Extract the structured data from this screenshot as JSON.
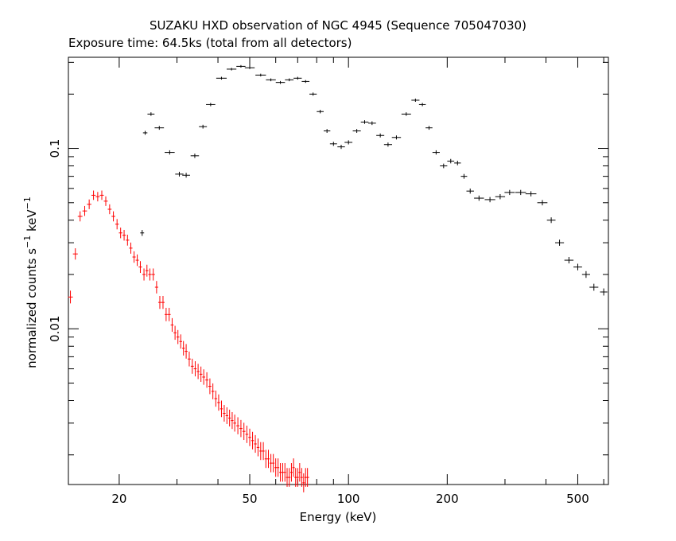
{
  "chart_data": {
    "type": "scatter",
    "title": "SUZAKU HXD observation of NGC 4945 (Sequence 705047030)",
    "subtitle": "Exposure time: 64.5ks (total from all detectors)",
    "xlabel": "Energy (keV)",
    "ylabel_main": "normalized counts s",
    "ylabel_sup1": "−1",
    "ylabel_mid": " keV",
    "ylabel_sup2": "−1",
    "x_scale": "log",
    "y_scale": "log",
    "xlim": [
      14,
      620
    ],
    "ylim": [
      0.00137,
      0.32
    ],
    "x_ticks": [
      {
        "value": 20,
        "label": "20"
      },
      {
        "value": 50,
        "label": "50"
      },
      {
        "value": 100,
        "label": "100"
      },
      {
        "value": 200,
        "label": "200"
      },
      {
        "value": 500,
        "label": "500"
      }
    ],
    "y_ticks": [
      {
        "value": 0.1,
        "label": "0.1"
      },
      {
        "value": 0.01,
        "label": "0.01"
      }
    ],
    "grid": false,
    "series": [
      {
        "color": "#000000",
        "points": [
          [
            23.5,
            0.034
          ],
          [
            24,
            0.122
          ],
          [
            25,
            0.155
          ],
          [
            26.5,
            0.13
          ],
          [
            28.5,
            0.095
          ],
          [
            30.5,
            0.072
          ],
          [
            32,
            0.071
          ],
          [
            34,
            0.091
          ],
          [
            36,
            0.132
          ],
          [
            38,
            0.175
          ],
          [
            41,
            0.245
          ],
          [
            44,
            0.275
          ],
          [
            47,
            0.285
          ],
          [
            50,
            0.28
          ],
          [
            54,
            0.255
          ],
          [
            58,
            0.24
          ],
          [
            62,
            0.232
          ],
          [
            66,
            0.24
          ],
          [
            70,
            0.245
          ],
          [
            74,
            0.235
          ],
          [
            78,
            0.2
          ],
          [
            82,
            0.16
          ],
          [
            86,
            0.125
          ],
          [
            90,
            0.106
          ],
          [
            95,
            0.102
          ],
          [
            100,
            0.108
          ],
          [
            106,
            0.125
          ],
          [
            112,
            0.14
          ],
          [
            118,
            0.138
          ],
          [
            125,
            0.118
          ],
          [
            132,
            0.105
          ],
          [
            140,
            0.115
          ],
          [
            150,
            0.155
          ],
          [
            160,
            0.185
          ],
          [
            168,
            0.175
          ],
          [
            176,
            0.13
          ],
          [
            185,
            0.095
          ],
          [
            195,
            0.08
          ],
          [
            205,
            0.085
          ],
          [
            215,
            0.083
          ],
          [
            225,
            0.07
          ],
          [
            235,
            0.058
          ],
          [
            250,
            0.053
          ],
          [
            270,
            0.052
          ],
          [
            290,
            0.054
          ],
          [
            310,
            0.057
          ],
          [
            335,
            0.057
          ],
          [
            360,
            0.056
          ],
          [
            390,
            0.05
          ],
          [
            415,
            0.04
          ],
          [
            440,
            0.03
          ],
          [
            470,
            0.024
          ],
          [
            500,
            0.022
          ],
          [
            530,
            0.02
          ],
          [
            560,
            0.017
          ],
          [
            600,
            0.016
          ]
        ]
      },
      {
        "color": "#ff0000",
        "points": [
          [
            14.2,
            0.015
          ],
          [
            14.7,
            0.026
          ],
          [
            15.2,
            0.042
          ],
          [
            15.7,
            0.045
          ],
          [
            16.2,
            0.049
          ],
          [
            16.7,
            0.055
          ],
          [
            17.2,
            0.054
          ],
          [
            17.7,
            0.055
          ],
          [
            18.2,
            0.051
          ],
          [
            18.7,
            0.046
          ],
          [
            19.2,
            0.042
          ],
          [
            19.7,
            0.038
          ],
          [
            20.2,
            0.034
          ],
          [
            20.7,
            0.033
          ],
          [
            21.2,
            0.031
          ],
          [
            21.7,
            0.028
          ],
          [
            22.2,
            0.025
          ],
          [
            22.7,
            0.024
          ],
          [
            23.2,
            0.022
          ],
          [
            23.8,
            0.02
          ],
          [
            24.3,
            0.021
          ],
          [
            24.8,
            0.02
          ],
          [
            25.4,
            0.02
          ],
          [
            26,
            0.017
          ],
          [
            26.6,
            0.014
          ],
          [
            27.2,
            0.014
          ],
          [
            27.8,
            0.012
          ],
          [
            28.4,
            0.012
          ],
          [
            29,
            0.0105
          ],
          [
            29.6,
            0.0095
          ],
          [
            30.2,
            0.009
          ],
          [
            30.8,
            0.0085
          ],
          [
            31.4,
            0.0078
          ],
          [
            32,
            0.0075
          ],
          [
            32.7,
            0.0068
          ],
          [
            33.4,
            0.0062
          ],
          [
            34.1,
            0.006
          ],
          [
            34.8,
            0.0058
          ],
          [
            35.5,
            0.0056
          ],
          [
            36.2,
            0.0054
          ],
          [
            37,
            0.0052
          ],
          [
            37.8,
            0.0048
          ],
          [
            38.6,
            0.0045
          ],
          [
            39.4,
            0.0041
          ],
          [
            40.2,
            0.0039
          ],
          [
            41,
            0.0036
          ],
          [
            41.8,
            0.0034
          ],
          [
            42.6,
            0.0033
          ],
          [
            43.4,
            0.0032
          ],
          [
            44.2,
            0.0031
          ],
          [
            45,
            0.003
          ],
          [
            46,
            0.0029
          ],
          [
            47,
            0.0028
          ],
          [
            48,
            0.0027
          ],
          [
            49,
            0.0026
          ],
          [
            50,
            0.0025
          ],
          [
            51,
            0.0024
          ],
          [
            52,
            0.0023
          ],
          [
            53,
            0.0022
          ],
          [
            54,
            0.0021
          ],
          [
            55,
            0.0021
          ],
          [
            56,
            0.0019
          ],
          [
            57,
            0.0019
          ],
          [
            58,
            0.0018
          ],
          [
            59,
            0.0018
          ],
          [
            60,
            0.0017
          ],
          [
            61,
            0.0017
          ],
          [
            62,
            0.0016
          ],
          [
            63,
            0.0016
          ],
          [
            64,
            0.0016
          ],
          [
            65,
            0.0015
          ],
          [
            66,
            0.0015
          ],
          [
            67,
            0.0016
          ],
          [
            68,
            0.0017
          ],
          [
            69,
            0.0015
          ],
          [
            70,
            0.0015
          ],
          [
            71,
            0.0016
          ],
          [
            72,
            0.0015
          ],
          [
            73,
            0.0014
          ],
          [
            74,
            0.0015
          ],
          [
            75,
            0.0015
          ]
        ]
      }
    ]
  }
}
